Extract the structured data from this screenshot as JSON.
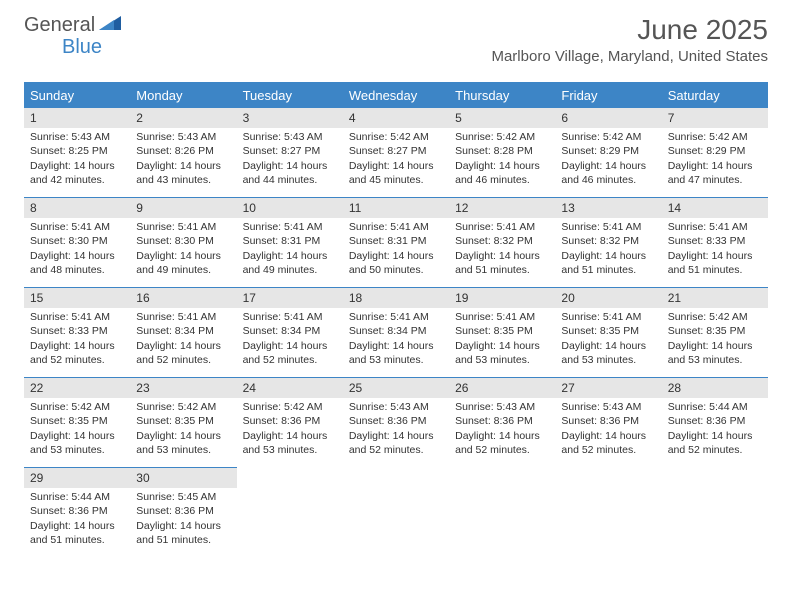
{
  "logo": {
    "text1": "General",
    "text2": "Blue"
  },
  "title": "June 2025",
  "location": "Marlboro Village, Maryland, United States",
  "header_bg": "#3d85c6",
  "header_fg": "#ffffff",
  "daynum_bg": "#e6e6e6",
  "border_color": "#3d85c6",
  "text_color": "#333333",
  "background_color": "#ffffff",
  "columns": [
    "Sunday",
    "Monday",
    "Tuesday",
    "Wednesday",
    "Thursday",
    "Friday",
    "Saturday"
  ],
  "days": [
    {
      "n": 1,
      "sr": "5:43 AM",
      "ss": "8:25 PM",
      "dl": "14 hours and 42 minutes."
    },
    {
      "n": 2,
      "sr": "5:43 AM",
      "ss": "8:26 PM",
      "dl": "14 hours and 43 minutes."
    },
    {
      "n": 3,
      "sr": "5:43 AM",
      "ss": "8:27 PM",
      "dl": "14 hours and 44 minutes."
    },
    {
      "n": 4,
      "sr": "5:42 AM",
      "ss": "8:27 PM",
      "dl": "14 hours and 45 minutes."
    },
    {
      "n": 5,
      "sr": "5:42 AM",
      "ss": "8:28 PM",
      "dl": "14 hours and 46 minutes."
    },
    {
      "n": 6,
      "sr": "5:42 AM",
      "ss": "8:29 PM",
      "dl": "14 hours and 46 minutes."
    },
    {
      "n": 7,
      "sr": "5:42 AM",
      "ss": "8:29 PM",
      "dl": "14 hours and 47 minutes."
    },
    {
      "n": 8,
      "sr": "5:41 AM",
      "ss": "8:30 PM",
      "dl": "14 hours and 48 minutes."
    },
    {
      "n": 9,
      "sr": "5:41 AM",
      "ss": "8:30 PM",
      "dl": "14 hours and 49 minutes."
    },
    {
      "n": 10,
      "sr": "5:41 AM",
      "ss": "8:31 PM",
      "dl": "14 hours and 49 minutes."
    },
    {
      "n": 11,
      "sr": "5:41 AM",
      "ss": "8:31 PM",
      "dl": "14 hours and 50 minutes."
    },
    {
      "n": 12,
      "sr": "5:41 AM",
      "ss": "8:32 PM",
      "dl": "14 hours and 51 minutes."
    },
    {
      "n": 13,
      "sr": "5:41 AM",
      "ss": "8:32 PM",
      "dl": "14 hours and 51 minutes."
    },
    {
      "n": 14,
      "sr": "5:41 AM",
      "ss": "8:33 PM",
      "dl": "14 hours and 51 minutes."
    },
    {
      "n": 15,
      "sr": "5:41 AM",
      "ss": "8:33 PM",
      "dl": "14 hours and 52 minutes."
    },
    {
      "n": 16,
      "sr": "5:41 AM",
      "ss": "8:34 PM",
      "dl": "14 hours and 52 minutes."
    },
    {
      "n": 17,
      "sr": "5:41 AM",
      "ss": "8:34 PM",
      "dl": "14 hours and 52 minutes."
    },
    {
      "n": 18,
      "sr": "5:41 AM",
      "ss": "8:34 PM",
      "dl": "14 hours and 53 minutes."
    },
    {
      "n": 19,
      "sr": "5:41 AM",
      "ss": "8:35 PM",
      "dl": "14 hours and 53 minutes."
    },
    {
      "n": 20,
      "sr": "5:41 AM",
      "ss": "8:35 PM",
      "dl": "14 hours and 53 minutes."
    },
    {
      "n": 21,
      "sr": "5:42 AM",
      "ss": "8:35 PM",
      "dl": "14 hours and 53 minutes."
    },
    {
      "n": 22,
      "sr": "5:42 AM",
      "ss": "8:35 PM",
      "dl": "14 hours and 53 minutes."
    },
    {
      "n": 23,
      "sr": "5:42 AM",
      "ss": "8:35 PM",
      "dl": "14 hours and 53 minutes."
    },
    {
      "n": 24,
      "sr": "5:42 AM",
      "ss": "8:36 PM",
      "dl": "14 hours and 53 minutes."
    },
    {
      "n": 25,
      "sr": "5:43 AM",
      "ss": "8:36 PM",
      "dl": "14 hours and 52 minutes."
    },
    {
      "n": 26,
      "sr": "5:43 AM",
      "ss": "8:36 PM",
      "dl": "14 hours and 52 minutes."
    },
    {
      "n": 27,
      "sr": "5:43 AM",
      "ss": "8:36 PM",
      "dl": "14 hours and 52 minutes."
    },
    {
      "n": 28,
      "sr": "5:44 AM",
      "ss": "8:36 PM",
      "dl": "14 hours and 52 minutes."
    },
    {
      "n": 29,
      "sr": "5:44 AM",
      "ss": "8:36 PM",
      "dl": "14 hours and 51 minutes."
    },
    {
      "n": 30,
      "sr": "5:45 AM",
      "ss": "8:36 PM",
      "dl": "14 hours and 51 minutes."
    }
  ],
  "labels": {
    "sunrise": "Sunrise:",
    "sunset": "Sunset:",
    "daylight": "Daylight:"
  },
  "font_family": "Arial",
  "title_fontsize": 28,
  "location_fontsize": 15,
  "header_fontsize": 13,
  "daynum_fontsize": 12,
  "body_fontsize": 10.5,
  "start_weekday": 0,
  "weeks": 5
}
